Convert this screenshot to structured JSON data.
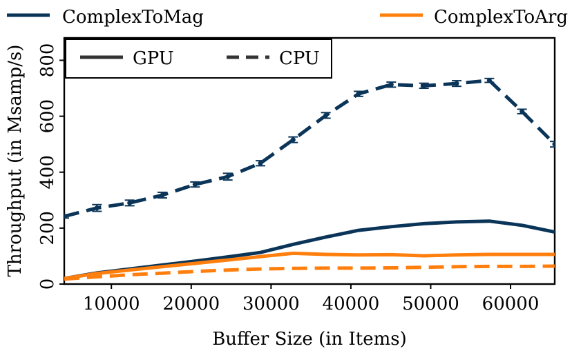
{
  "chart_data": {
    "type": "line",
    "title": "",
    "xlabel": "Buffer Size (in Items)",
    "ylabel": "Throughput (in Msamp/s)",
    "xlim": [
      4096,
      65536
    ],
    "ylim": [
      0,
      880
    ],
    "xticks": [
      10000,
      20000,
      30000,
      40000,
      50000,
      60000
    ],
    "xtick_labels": [
      "10000",
      "20000",
      "30000",
      "40000",
      "50000",
      "60000"
    ],
    "yticks": [
      0,
      200,
      400,
      600,
      800
    ],
    "ytick_labels": [
      "0",
      "200",
      "400",
      "600",
      "800"
    ],
    "x": [
      4096,
      8192,
      12288,
      16384,
      20480,
      24576,
      28672,
      32768,
      36864,
      40960,
      45056,
      49152,
      53248,
      57344,
      61440,
      65536
    ],
    "series": [
      {
        "name": "ComplexToMag",
        "device": "CPU",
        "color": "#0b3558",
        "dash": "dashed",
        "error_bars": true,
        "values": [
          242,
          272,
          290,
          318,
          356,
          384,
          432,
          516,
          603,
          680,
          713,
          709,
          717,
          728,
          617,
          500
        ],
        "errors": [
          6,
          12,
          10,
          10,
          9,
          12,
          9,
          10,
          10,
          9,
          9,
          9,
          10,
          7,
          8,
          10
        ]
      },
      {
        "name": "ComplexToMag",
        "device": "GPU",
        "color": "#0b3558",
        "dash": "solid",
        "error_bars": false,
        "values": [
          20,
          40,
          54,
          68,
          82,
          97,
          113,
          142,
          168,
          192,
          205,
          216,
          222,
          225,
          210,
          186
        ]
      },
      {
        "name": "ComplexToArg",
        "device": "GPU",
        "color": "#ff7f0e",
        "dash": "solid",
        "error_bars": false,
        "values": [
          20,
          38,
          50,
          62,
          74,
          86,
          98,
          110,
          106,
          104,
          105,
          101,
          104,
          106,
          106,
          106
        ]
      },
      {
        "name": "ComplexToArg",
        "device": "CPU",
        "color": "#ff7f0e",
        "dash": "dashed",
        "error_bars": false,
        "values": [
          18,
          26,
          33,
          39,
          45,
          50,
          54,
          56,
          57,
          57,
          58,
          60,
          62,
          63,
          63,
          64
        ]
      }
    ],
    "top_legend": {
      "placement": "above-plot",
      "entries": [
        {
          "label": "ComplexToMag",
          "color": "#0b3558"
        },
        {
          "label": "ComplexToArg",
          "color": "#ff7f0e"
        }
      ]
    },
    "style_legend": {
      "placement": "top-left",
      "entries": [
        {
          "label": "GPU",
          "dash": "solid"
        },
        {
          "label": "CPU",
          "dash": "dashed"
        }
      ]
    },
    "grid": false
  }
}
